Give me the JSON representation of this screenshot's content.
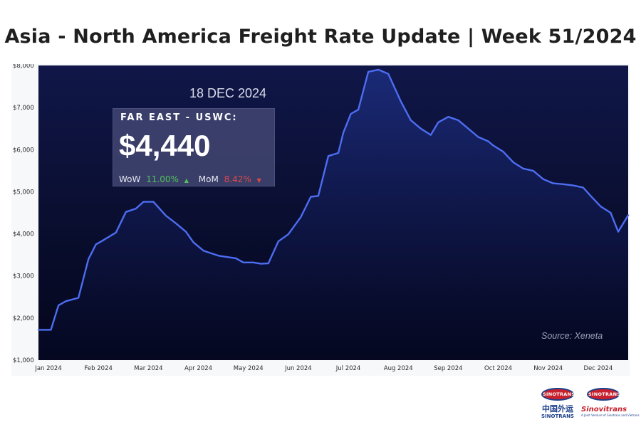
{
  "title": "Asia - North America Freight Rate Update | Week 51/2024",
  "date_label": "18 DEC 2024",
  "rate_box": {
    "route": "FAR EAST - USWC:",
    "value": "$4,440",
    "wow_label": "WoW",
    "wow_value": "11.00%",
    "wow_arrow": "▲",
    "mom_label": "MoM",
    "mom_value": "8.42%",
    "mom_arrow": "▼"
  },
  "source": "Source: Xeneta",
  "logos": {
    "left_badge": "SINOTRANS",
    "left_cn": "中国外运",
    "left_en": "SINOTRANS",
    "right_badge": "SINOTRANS",
    "right_brand": "Sinovitrans",
    "right_tagline": "A Joint Venture of Sinotrans and Vietrans"
  },
  "colors": {
    "plot_bg_top": "#101748",
    "plot_bg_bottom": "#04061a",
    "line": "#4d6df2",
    "pos": "#4fc35a",
    "neg": "#e04848"
  },
  "chart_data": {
    "type": "area",
    "title": "Asia - North America Freight Rate Update | Week 51/2024",
    "series": [
      {
        "name": "FAR EAST - USWC",
        "x": [
          0,
          0.25,
          0.4,
          0.55,
          0.8,
          1.0,
          1.15,
          1.3,
          1.55,
          1.75,
          1.95,
          2.1,
          2.3,
          2.55,
          2.75,
          2.95,
          3.1,
          3.3,
          3.6,
          3.95,
          4.1,
          4.3,
          4.45,
          4.6,
          4.8,
          5.0,
          5.25,
          5.45,
          5.6,
          5.8,
          6.0,
          6.1,
          6.25,
          6.4,
          6.5,
          6.6,
          6.8,
          7.0,
          7.25,
          7.45,
          7.65,
          7.85,
          8.0,
          8.2,
          8.4,
          8.6,
          8.8,
          9.0,
          9.1,
          9.3,
          9.5,
          9.7,
          9.9,
          10.1,
          10.3,
          10.5,
          10.7,
          10.9,
          11.05,
          11.25,
          11.45,
          11.6,
          11.8
        ],
        "values": [
          1720,
          1720,
          2300,
          2400,
          2480,
          3400,
          3750,
          3850,
          4030,
          4520,
          4600,
          4760,
          4760,
          4430,
          4250,
          4050,
          3800,
          3600,
          3480,
          3420,
          3320,
          3320,
          3290,
          3300,
          3820,
          3990,
          4400,
          4880,
          4900,
          5850,
          5920,
          6400,
          6850,
          6950,
          7400,
          7850,
          7900,
          7800,
          7150,
          6700,
          6500,
          6350,
          6650,
          6780,
          6700,
          6500,
          6300,
          6200,
          6100,
          5950,
          5700,
          5550,
          5500,
          5300,
          5200,
          5180,
          5150,
          5100,
          4900,
          4650,
          4500,
          4050,
          4440
        ]
      }
    ],
    "x_ticks": [
      0.2,
      1.2,
      2.2,
      3.2,
      4.2,
      5.2,
      6.2,
      7.2,
      8.2,
      9.2,
      10.2,
      11.2
    ],
    "x_tick_labels": [
      "Jan 2024",
      "Feb 2024",
      "Mar 2024",
      "Apr 2024",
      "May 2024",
      "Jun 2024",
      "Jul 2024",
      "Aug 2024",
      "Sep 2024",
      "Oct 2024",
      "Nov 2024",
      "Dec 2024"
    ],
    "xlim": [
      0,
      11.8
    ],
    "y_ticks": [
      1000,
      2000,
      3000,
      4000,
      5000,
      6000,
      7000,
      8000
    ],
    "y_tick_labels": [
      "$1,000",
      "$2,000",
      "$3,000",
      "$4,000",
      "$5,000",
      "$6,000",
      "$7,000",
      "$8,000"
    ],
    "ylim": [
      1000,
      8000
    ],
    "xlabel": "",
    "ylabel": "",
    "grid": false,
    "legend": "none"
  }
}
